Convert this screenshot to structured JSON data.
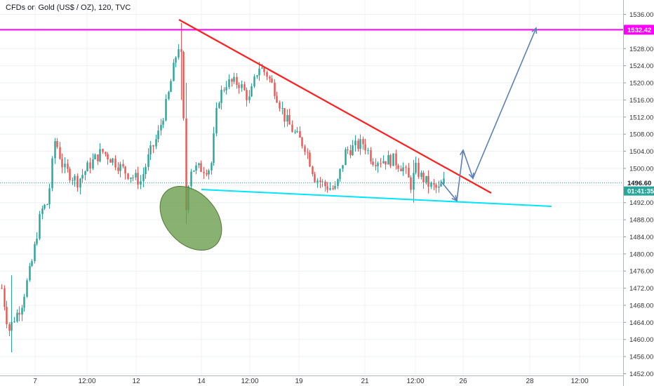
{
  "header": {
    "title": "CFDs on Gold (US$ / OZ), 120, TVC"
  },
  "chart_data": {
    "type": "candlestick",
    "title": "CFDs on Gold (US$ / OZ), 120, TVC",
    "ylim": [
      1452,
      1538
    ],
    "y_ticks": [
      "1536.00",
      "1532.00",
      "1528.00",
      "1524.00",
      "1520.00",
      "1516.00",
      "1512.00",
      "1508.00",
      "1504.00",
      "1500.00",
      "1496.00",
      "1492.00",
      "1488.00",
      "1484.00",
      "1480.00",
      "1476.00",
      "1472.00",
      "1468.00",
      "1464.00",
      "1460.00",
      "1456.00",
      "1452.00"
    ],
    "x_ticks": [
      "7",
      "12:00",
      "12",
      "14",
      "12:00",
      "19",
      "21",
      "12:00",
      "26",
      "28",
      "12:00"
    ],
    "last_price": {
      "value": 1496.6,
      "label": "1496.60",
      "countdown": "01:41:35",
      "color": "#26a69a"
    },
    "resistance_level": {
      "value": 1532.42,
      "label": "1532.42",
      "color": "#ff00ff"
    },
    "grid": true,
    "colors": {
      "up": "#26a69a",
      "down": "#ef5350",
      "trendline": "#ff1e1e",
      "support": "#00e5ff",
      "projection": "#5b7fb8",
      "ellipse": "#6b9e4d"
    },
    "trend_lines": [
      {
        "name": "descending-resistance",
        "from": [
          0.0,
          1535.0
        ],
        "to": [
          0.0,
          1494.0
        ]
      },
      {
        "name": "ascending-support",
        "from": [
          0.0,
          1494.5
        ],
        "to": [
          0.0,
          1491.0
        ]
      }
    ]
  }
}
